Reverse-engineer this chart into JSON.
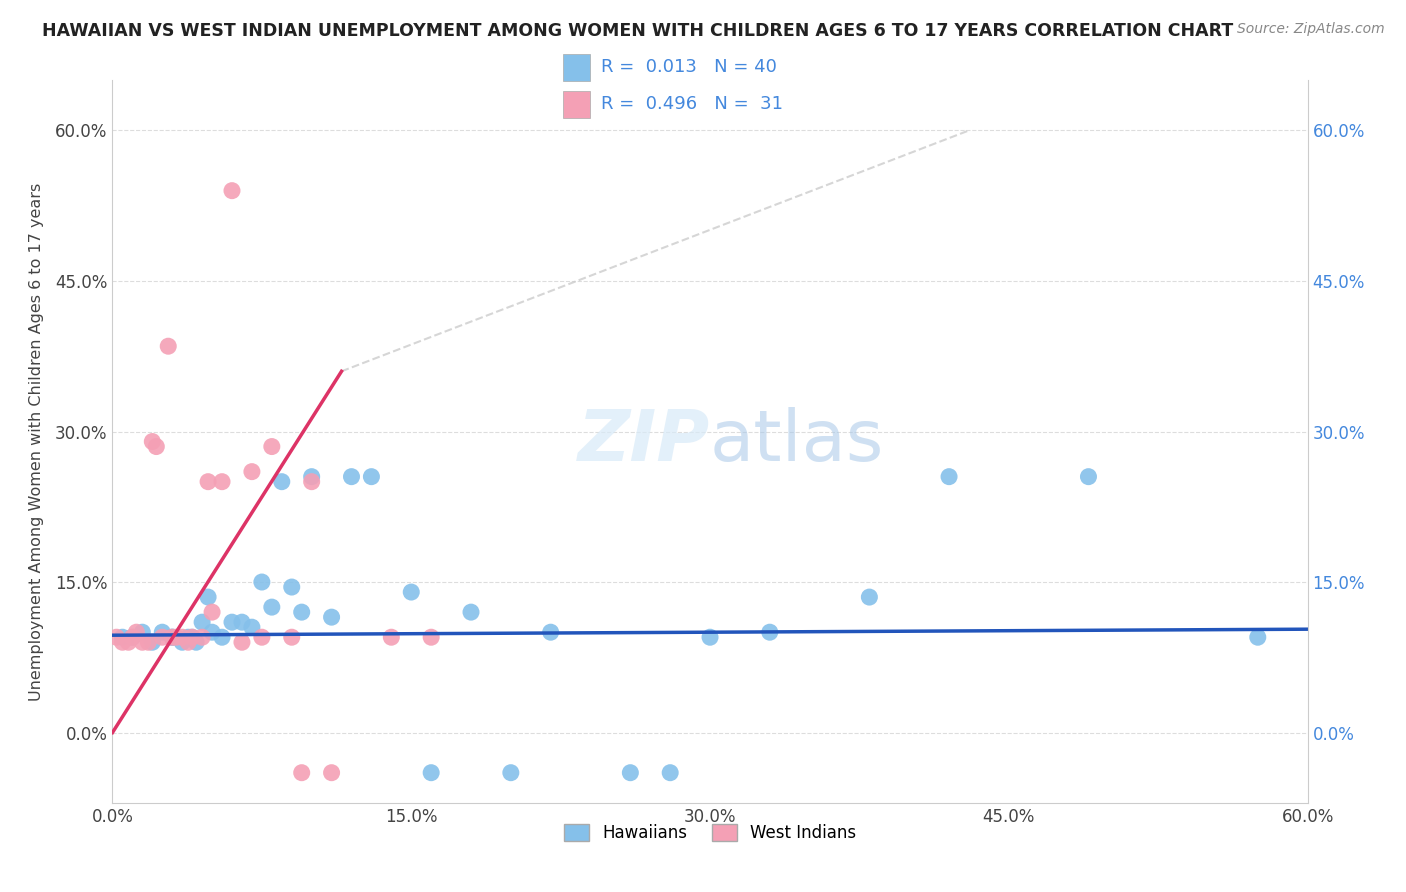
{
  "title": "HAWAIIAN VS WEST INDIAN UNEMPLOYMENT AMONG WOMEN WITH CHILDREN AGES 6 TO 17 YEARS CORRELATION CHART",
  "source": "Source: ZipAtlas.com",
  "ylabel": "Unemployment Among Women with Children Ages 6 to 17 years",
  "xlim": [
    0.0,
    0.6
  ],
  "ylim": [
    -0.07,
    0.65
  ],
  "x_ticks": [
    0.0,
    0.15,
    0.3,
    0.45,
    0.6
  ],
  "x_tick_labels": [
    "0.0%",
    "15.0%",
    "30.0%",
    "45.0%",
    "60.0%"
  ],
  "y_ticks": [
    0.0,
    0.15,
    0.3,
    0.45,
    0.6
  ],
  "y_tick_labels": [
    "0.0%",
    "15.0%",
    "30.0%",
    "45.0%",
    "60.0%"
  ],
  "hawaiian_color": "#85C0EA",
  "west_indian_color": "#F4A0B5",
  "hawaiian_line_color": "#2255BB",
  "west_indian_line_color": "#DD3366",
  "dashed_line_color": "#CCCCCC",
  "background_color": "#FFFFFF",
  "legend_R_hawaiian": "0.013",
  "legend_N_hawaiian": "40",
  "legend_R_west_indian": "0.496",
  "legend_N_west_indian": "31",
  "legend_text_color": "#4488DD",
  "right_tick_color": "#4488DD",
  "hawaiians_x": [
    0.005,
    0.01,
    0.015,
    0.02,
    0.025,
    0.03,
    0.03,
    0.035,
    0.038,
    0.04,
    0.042,
    0.045,
    0.048,
    0.05,
    0.055,
    0.06,
    0.065,
    0.07,
    0.075,
    0.08,
    0.085,
    0.09,
    0.095,
    0.1,
    0.11,
    0.12,
    0.13,
    0.15,
    0.16,
    0.18,
    0.2,
    0.22,
    0.26,
    0.28,
    0.3,
    0.33,
    0.38,
    0.42,
    0.49,
    0.575
  ],
  "hawaiians_y": [
    0.095,
    0.095,
    0.1,
    0.09,
    0.1,
    0.095,
    0.095,
    0.09,
    0.095,
    0.095,
    0.09,
    0.11,
    0.135,
    0.1,
    0.095,
    0.11,
    0.11,
    0.105,
    0.15,
    0.125,
    0.25,
    0.145,
    0.12,
    0.255,
    0.115,
    0.255,
    0.255,
    0.14,
    -0.04,
    0.12,
    -0.04,
    0.1,
    -0.04,
    -0.04,
    0.095,
    0.1,
    0.135,
    0.255,
    0.255,
    0.095
  ],
  "west_indians_x": [
    0.002,
    0.005,
    0.008,
    0.01,
    0.012,
    0.015,
    0.018,
    0.02,
    0.022,
    0.025,
    0.028,
    0.03,
    0.032,
    0.035,
    0.038,
    0.04,
    0.045,
    0.048,
    0.05,
    0.055,
    0.06,
    0.065,
    0.07,
    0.075,
    0.08,
    0.09,
    0.095,
    0.1,
    0.11,
    0.14,
    0.16
  ],
  "west_indians_y": [
    0.095,
    0.09,
    0.09,
    0.095,
    0.1,
    0.09,
    0.09,
    0.29,
    0.285,
    0.095,
    0.385,
    0.095,
    0.095,
    0.095,
    0.09,
    0.095,
    0.095,
    0.25,
    0.12,
    0.25,
    0.54,
    0.09,
    0.26,
    0.095,
    0.285,
    0.095,
    -0.04,
    0.25,
    -0.04,
    0.095,
    0.095
  ],
  "wi_line_x_start": 0.0,
  "wi_line_x_end": 0.115,
  "wi_line_y_start": 0.0,
  "wi_line_y_end": 0.36,
  "haw_line_x_start": 0.0,
  "haw_line_x_end": 0.6,
  "haw_line_y_start": 0.097,
  "haw_line_y_end": 0.103,
  "dashed_line_x_start": 0.115,
  "dashed_line_x_end": 0.43,
  "dashed_line_y_start": 0.36,
  "dashed_line_y_end": 0.6
}
